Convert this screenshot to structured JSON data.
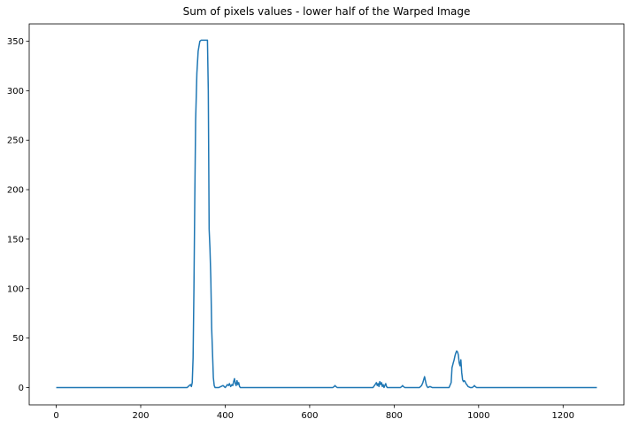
{
  "chart_data": {
    "type": "line",
    "title": "Sum of pixels values - lower half of the Warped Image",
    "xlabel": "",
    "ylabel": "",
    "xlim": [
      -64,
      1344
    ],
    "ylim": [
      -17.5,
      367.5
    ],
    "xticks": [
      0,
      200,
      400,
      600,
      800,
      1000,
      1200
    ],
    "yticks": [
      0,
      50,
      100,
      150,
      200,
      250,
      300,
      350
    ],
    "grid": false,
    "legend": "none",
    "series": [
      {
        "color": "#1f77b4",
        "x": [
          0,
          310,
          315,
          318,
          320,
          322,
          324,
          326,
          328,
          330,
          333,
          336,
          340,
          343,
          346,
          349,
          352,
          355,
          358,
          360,
          362,
          364,
          366,
          368,
          370,
          372,
          374,
          376,
          378,
          380,
          385,
          390,
          395,
          400,
          402,
          405,
          408,
          410,
          413,
          416,
          418,
          420,
          422,
          424,
          426,
          428,
          430,
          432,
          434,
          436,
          440,
          450,
          655,
          658,
          660,
          662,
          665,
          750,
          755,
          758,
          760,
          762,
          764,
          766,
          768,
          770,
          772,
          774,
          776,
          778,
          780,
          782,
          784,
          800,
          815,
          818,
          820,
          822,
          825,
          860,
          865,
          868,
          870,
          872,
          874,
          876,
          878,
          880,
          885,
          890,
          930,
          935,
          937,
          940,
          942,
          944,
          946,
          948,
          950,
          952,
          954,
          956,
          958,
          960,
          962,
          964,
          966,
          968,
          970,
          972,
          975,
          980,
          985,
          988,
          990,
          992,
          995,
          1000,
          1280
        ],
        "y": [
          0,
          0,
          2,
          3,
          1,
          5,
          30,
          100,
          190,
          270,
          318,
          340,
          350,
          351,
          351,
          351,
          351,
          351,
          351,
          300,
          160,
          140,
          110,
          60,
          35,
          10,
          2,
          0,
          0,
          0,
          0,
          1,
          2,
          0,
          1,
          3,
          2,
          4,
          1,
          3,
          2,
          6,
          9,
          4,
          2,
          7,
          3,
          5,
          1,
          0,
          0,
          0,
          0,
          1,
          2,
          1,
          0,
          0,
          3,
          5,
          2,
          4,
          1,
          6,
          3,
          5,
          1,
          3,
          0,
          2,
          4,
          1,
          0,
          0,
          0,
          1,
          2,
          1,
          0,
          0,
          2,
          5,
          8,
          11,
          7,
          3,
          1,
          0,
          1,
          0,
          0,
          5,
          20,
          25,
          28,
          32,
          35,
          37,
          36,
          33,
          25,
          22,
          28,
          15,
          8,
          6,
          7,
          6,
          4,
          3,
          1,
          0,
          0,
          1,
          2,
          1,
          0,
          0,
          0
        ]
      }
    ]
  }
}
